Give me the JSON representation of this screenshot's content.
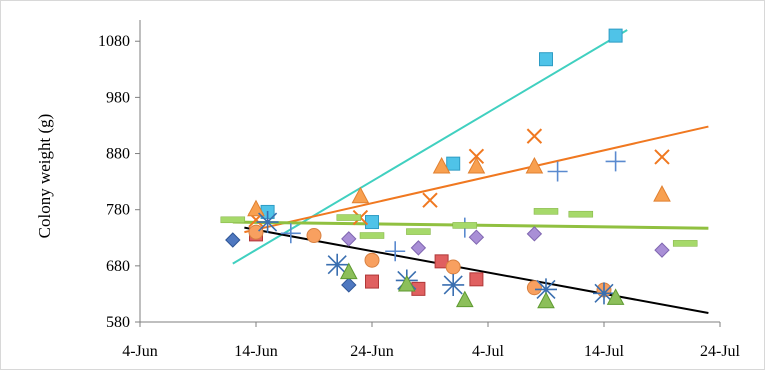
{
  "chart_data": {
    "type": "scatter",
    "title": "",
    "xlabel": "",
    "ylabel": "Colony weight (g)",
    "x_ticks": [
      "4-Jun",
      "14-Jun",
      "24-Jun",
      "4-Jul",
      "14-Jul",
      "24-Jul"
    ],
    "x_tick_dates": [
      "2000-06-04",
      "2000-06-14",
      "2000-06-24",
      "2000-07-04",
      "2000-07-14",
      "2000-07-24"
    ],
    "xlim": [
      "2000-06-04",
      "2000-07-24"
    ],
    "y_ticks": [
      580,
      680,
      780,
      880,
      980,
      1080
    ],
    "ylim": [
      580,
      1100
    ],
    "grid": false,
    "legend": "none",
    "series": [
      {
        "marker": "square",
        "color": "#4FC3E8",
        "stroke": "#2E9CC4",
        "points": [
          [
            "2000-06-15",
            776
          ],
          [
            "2000-06-24",
            758
          ],
          [
            "2000-07-01",
            862
          ],
          [
            "2000-07-09",
            1048
          ],
          [
            "2000-07-15",
            1090
          ]
        ]
      },
      {
        "marker": "x",
        "color": "#F07820",
        "points": [
          [
            "2000-06-14",
            762
          ],
          [
            "2000-06-23",
            766
          ],
          [
            "2000-06-29",
            797
          ],
          [
            "2000-07-03",
            875
          ],
          [
            "2000-07-08",
            911
          ],
          [
            "2000-07-19",
            874
          ]
        ]
      },
      {
        "marker": "triangle",
        "color": "#F8A050",
        "stroke": "#E08030",
        "points": [
          [
            "2000-06-14",
            780
          ],
          [
            "2000-06-23",
            803
          ],
          [
            "2000-06-30",
            856
          ],
          [
            "2000-07-03",
            856
          ],
          [
            "2000-07-08",
            856
          ],
          [
            "2000-07-19",
            806
          ]
        ]
      },
      {
        "marker": "plus",
        "color": "#5A8ACF",
        "points": [
          [
            "2000-06-17",
            738
          ],
          [
            "2000-06-26",
            706
          ],
          [
            "2000-07-02",
            748
          ],
          [
            "2000-07-10",
            848
          ],
          [
            "2000-07-15",
            866
          ]
        ]
      },
      {
        "marker": "dash",
        "color": "#A6D96A",
        "stroke": "#7FB03F",
        "points": [
          [
            "2000-06-12",
            762
          ],
          [
            "2000-06-22",
            766
          ],
          [
            "2000-06-24",
            734
          ],
          [
            "2000-06-28",
            741
          ],
          [
            "2000-07-02",
            752
          ],
          [
            "2000-07-09",
            777
          ],
          [
            "2000-07-12",
            772
          ],
          [
            "2000-07-21",
            720
          ]
        ]
      },
      {
        "marker": "diamond",
        "color": "#4F78C0",
        "stroke": "#2E5596",
        "points": [
          [
            "2000-06-12",
            726
          ],
          [
            "2000-06-22",
            646
          ]
        ]
      },
      {
        "marker": "diamond",
        "color": "#A98FD6",
        "stroke": "#7F66B0",
        "points": [
          [
            "2000-06-22",
            728
          ],
          [
            "2000-06-28",
            712
          ],
          [
            "2000-07-03",
            731
          ],
          [
            "2000-07-08",
            737
          ],
          [
            "2000-07-19",
            708
          ]
        ]
      },
      {
        "marker": "square",
        "color": "#E06060",
        "stroke": "#B03838",
        "points": [
          [
            "2000-06-14",
            736
          ],
          [
            "2000-06-24",
            652
          ],
          [
            "2000-06-28",
            639
          ],
          [
            "2000-06-30",
            688
          ],
          [
            "2000-07-03",
            656
          ]
        ]
      },
      {
        "marker": "circle",
        "color": "#F8A060",
        "stroke": "#D88040",
        "points": [
          [
            "2000-06-14",
            740
          ],
          [
            "2000-06-19",
            734
          ],
          [
            "2000-06-24",
            690
          ],
          [
            "2000-07-01",
            678
          ],
          [
            "2000-07-08",
            641
          ],
          [
            "2000-07-14",
            637
          ]
        ]
      },
      {
        "marker": "star",
        "color": "#3A6FB0",
        "points": [
          [
            "2000-06-15",
            758
          ],
          [
            "2000-06-21",
            682
          ],
          [
            "2000-06-27",
            654
          ],
          [
            "2000-07-01",
            646
          ],
          [
            "2000-07-09",
            638
          ],
          [
            "2000-07-14",
            631
          ]
        ]
      },
      {
        "marker": "triangle",
        "color": "#8CBF5A",
        "stroke": "#5E9A30",
        "points": [
          [
            "2000-06-22",
            668
          ],
          [
            "2000-06-27",
            646
          ],
          [
            "2000-07-02",
            618
          ],
          [
            "2000-07-09",
            616
          ],
          [
            "2000-07-15",
            622
          ]
        ]
      }
    ],
    "trendlines": [
      {
        "color": "#40D0C0",
        "from": [
          "2000-06-12",
          684
        ],
        "to": [
          "2000-07-16",
          1100
        ]
      },
      {
        "color": "#F07820",
        "from": [
          "2000-06-13",
          740
        ],
        "to": [
          "2000-07-23",
          928
        ]
      },
      {
        "color": "#90C040",
        "from": [
          "2000-06-12",
          758
        ],
        "to": [
          "2000-07-23",
          747
        ]
      },
      {
        "color": "#000000",
        "from": [
          "2000-06-13",
          748
        ],
        "to": [
          "2000-07-23",
          596
        ]
      }
    ]
  }
}
